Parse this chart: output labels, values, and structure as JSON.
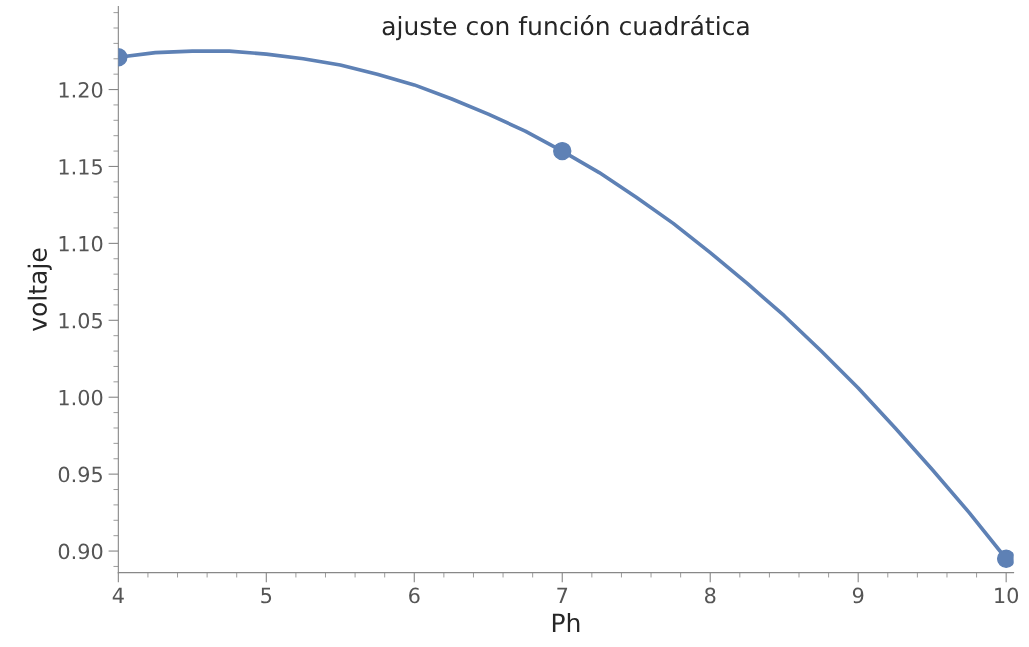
{
  "chart_data": {
    "type": "line",
    "title": "ajuste con función cuadrática",
    "xlabel": "Ph",
    "ylabel": "voltaje",
    "xlim": [
      4,
      10.05
    ],
    "ylim": [
      0.886,
      1.254
    ],
    "xticks": [
      4,
      5,
      6,
      7,
      8,
      9,
      10
    ],
    "yticks": [
      {
        "value": 0.9,
        "label": "0.90"
      },
      {
        "value": 0.95,
        "label": "0.95"
      },
      {
        "value": 1.0,
        "label": "1.00"
      },
      {
        "value": 1.05,
        "label": "1.05"
      },
      {
        "value": 1.1,
        "label": "1.10"
      },
      {
        "value": 1.15,
        "label": "1.15"
      },
      {
        "value": 1.2,
        "label": "1.20"
      }
    ],
    "grid": false,
    "series": [
      {
        "type": "scatter",
        "color": "#5e81b5",
        "marker": "circle",
        "x": [
          4,
          7,
          10
        ],
        "values": [
          1.221,
          1.16,
          0.895
        ]
      },
      {
        "color": "#5e81b5",
        "marker": "none",
        "line_style": "solid",
        "x": [
          4,
          4.25,
          4.5,
          4.75,
          5,
          5.25,
          5.5,
          5.75,
          6,
          6.25,
          6.5,
          6.75,
          7,
          7.25,
          7.5,
          7.75,
          8,
          8.25,
          8.5,
          8.75,
          9,
          9.25,
          9.5,
          9.75,
          10
        ],
        "values": [
          1.221,
          1.224,
          1.225,
          1.225,
          1.223,
          1.22,
          1.216,
          1.21,
          1.203,
          1.194,
          1.184,
          1.173,
          1.16,
          1.146,
          1.13,
          1.113,
          1.094,
          1.074,
          1.053,
          1.03,
          1.006,
          0.98,
          0.953,
          0.925,
          0.895
        ]
      }
    ]
  }
}
